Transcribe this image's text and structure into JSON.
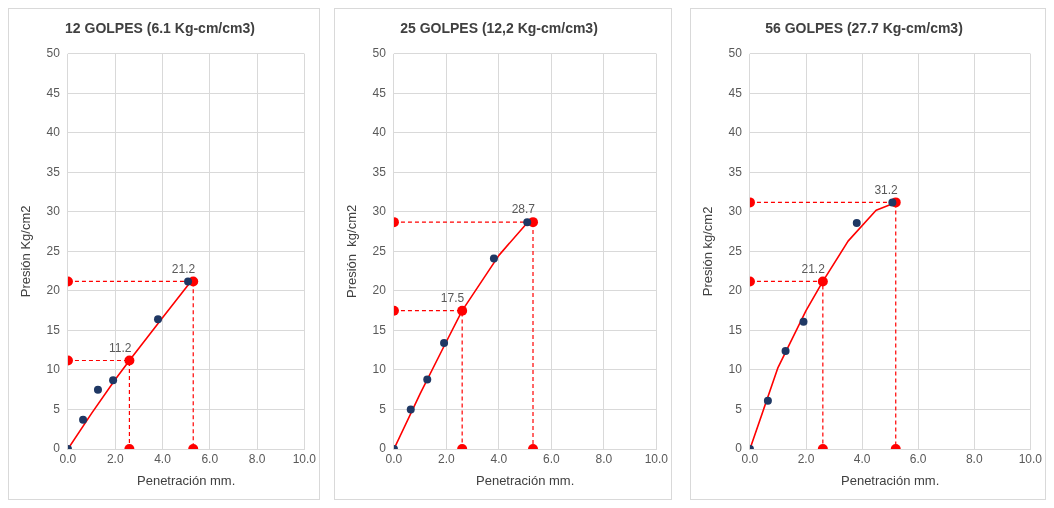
{
  "chart_data": [
    {
      "type": "scatter",
      "title": "12 GOLPES (6.1 Kg-cm/cm3)",
      "xlabel": "Penetración mm.",
      "ylabel": "Presión Kg/cm2",
      "xlim": [
        0,
        10
      ],
      "xticks": [
        {
          "value": 0,
          "label": "0.0"
        },
        {
          "value": 2,
          "label": "2.0"
        },
        {
          "value": 4,
          "label": "4.0"
        },
        {
          "value": 6,
          "label": "6.0"
        },
        {
          "value": 8,
          "label": "8.0"
        },
        {
          "value": 10,
          "label": "10.0"
        }
      ],
      "ylim": [
        0,
        50
      ],
      "yticks": [
        0,
        5,
        10,
        15,
        20,
        25,
        30,
        35,
        40,
        45,
        50
      ],
      "grid": true,
      "legend": false,
      "series": [
        {
          "type": "scatter",
          "color": "#1f3864",
          "marker": "circle",
          "x": [
            0,
            0.64,
            1.27,
            1.91,
            3.81,
            5.08
          ],
          "values": [
            0,
            3.7,
            7.5,
            8.7,
            16.4,
            21.2
          ]
        },
        {
          "type": "line",
          "color": "#ff0000",
          "marker": "none",
          "line_style": "solid",
          "x": [
            0,
            1,
            2,
            2.6,
            4,
            5.2
          ],
          "values": [
            0,
            4.5,
            8.8,
            11.2,
            16.6,
            21.2
          ]
        },
        {
          "type": "line",
          "color": "#ff0000",
          "marker": "circle",
          "line_style": "dashed",
          "x": [
            0,
            2.6,
            2.6
          ],
          "values": [
            11.2,
            11.2,
            0
          ],
          "value_labels": [
            null,
            "11.2",
            null
          ]
        },
        {
          "type": "line",
          "color": "#ff0000",
          "marker": "circle",
          "line_style": "dashed",
          "x": [
            0,
            5.3,
            5.3
          ],
          "values": [
            21.2,
            21.2,
            0
          ],
          "value_labels": [
            null,
            "21.2",
            null
          ]
        }
      ]
    },
    {
      "type": "scatter",
      "title": "25 GOLPES (12,2 Kg-cm/cm3)",
      "xlabel": "Penetración mm.",
      "ylabel": "Presión  kg/cm2",
      "xlim": [
        0,
        10
      ],
      "xticks": [
        {
          "value": 0,
          "label": "0.0"
        },
        {
          "value": 2,
          "label": "2.0"
        },
        {
          "value": 4,
          "label": "4.0"
        },
        {
          "value": 6,
          "label": "6.0"
        },
        {
          "value": 8,
          "label": "8.0"
        },
        {
          "value": 10,
          "label": "10.0"
        }
      ],
      "ylim": [
        0,
        50
      ],
      "yticks": [
        0,
        5,
        10,
        15,
        20,
        25,
        30,
        35,
        40,
        45,
        50
      ],
      "grid": true,
      "legend": false,
      "series": [
        {
          "type": "scatter",
          "color": "#1f3864",
          "marker": "circle",
          "x": [
            0,
            0.64,
            1.27,
            1.91,
            3.81,
            5.08
          ],
          "values": [
            0,
            5.0,
            8.8,
            13.4,
            24.1,
            28.7
          ]
        },
        {
          "type": "line",
          "color": "#ff0000",
          "marker": "none",
          "line_style": "solid",
          "x": [
            0,
            1,
            2,
            2.6,
            4,
            5.1
          ],
          "values": [
            0,
            7,
            13.6,
            17.5,
            24.5,
            28.7
          ]
        },
        {
          "type": "line",
          "color": "#ff0000",
          "marker": "circle",
          "line_style": "dashed",
          "x": [
            0,
            2.6,
            2.6
          ],
          "values": [
            17.5,
            17.5,
            0
          ],
          "value_labels": [
            null,
            "17.5",
            null
          ]
        },
        {
          "type": "line",
          "color": "#ff0000",
          "marker": "circle",
          "line_style": "dashed",
          "x": [
            0,
            5.3,
            5.3
          ],
          "values": [
            28.7,
            28.7,
            0
          ],
          "value_labels": [
            null,
            "28.7",
            null
          ]
        }
      ]
    },
    {
      "type": "scatter",
      "title": "56 GOLPES (27.7 Kg-cm/cm3)",
      "xlabel": "Penetración mm.",
      "ylabel": "Presión kg/cm2",
      "xlim": [
        0,
        10
      ],
      "xticks": [
        {
          "value": 0,
          "label": "0.0"
        },
        {
          "value": 2,
          "label": "2.0"
        },
        {
          "value": 4,
          "label": "4.0"
        },
        {
          "value": 6,
          "label": "6.0"
        },
        {
          "value": 8,
          "label": "8.0"
        },
        {
          "value": 10,
          "label": "10.0"
        }
      ],
      "ylim": [
        0,
        50
      ],
      "yticks": [
        0,
        5,
        10,
        15,
        20,
        25,
        30,
        35,
        40,
        45,
        50
      ],
      "grid": true,
      "legend": false,
      "series": [
        {
          "type": "scatter",
          "color": "#1f3864",
          "marker": "circle",
          "x": [
            0,
            0.64,
            1.27,
            1.91,
            3.81,
            5.08
          ],
          "values": [
            0,
            6.1,
            12.4,
            16.1,
            28.6,
            31.2
          ]
        },
        {
          "type": "line",
          "color": "#ff0000",
          "marker": "none",
          "line_style": "solid",
          "x": [
            0,
            1,
            2,
            2.6,
            3.5,
            4.5,
            5.2
          ],
          "values": [
            0,
            10.3,
            17.5,
            21.2,
            26.3,
            30.2,
            31.2
          ]
        },
        {
          "type": "line",
          "color": "#ff0000",
          "marker": "circle",
          "line_style": "dashed",
          "x": [
            0,
            2.6,
            2.6
          ],
          "values": [
            21.2,
            21.2,
            0
          ],
          "value_labels": [
            null,
            "21.2",
            null
          ]
        },
        {
          "type": "line",
          "color": "#ff0000",
          "marker": "circle",
          "line_style": "dashed",
          "x": [
            0,
            5.2,
            5.2
          ],
          "values": [
            31.2,
            31.2,
            0
          ],
          "value_labels": [
            null,
            "31.2",
            null
          ]
        }
      ]
    }
  ]
}
